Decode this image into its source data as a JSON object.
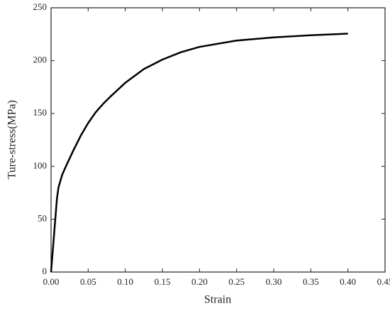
{
  "chart_data": {
    "type": "line",
    "x_label": "Strain",
    "y_label": "Ture-stress(MPa)",
    "x": [
      0,
      0.004,
      0.008,
      0.01,
      0.015,
      0.02,
      0.03,
      0.04,
      0.05,
      0.06,
      0.07,
      0.08,
      0.1,
      0.125,
      0.15,
      0.175,
      0.2,
      0.25,
      0.3,
      0.35,
      0.4
    ],
    "values": [
      0,
      35,
      70,
      80,
      92,
      100,
      115,
      129,
      141,
      151,
      159,
      166,
      179,
      192,
      201,
      208,
      213,
      219,
      222,
      224,
      225.5
    ],
    "color": "#000000",
    "xlim": [
      0,
      0.45
    ],
    "xticks": [
      {
        "value": 0,
        "label": "0.00"
      },
      {
        "value": 0.05,
        "label": "0.05"
      },
      {
        "value": 0.1,
        "label": "0.10"
      },
      {
        "value": 0.15,
        "label": "0.15"
      },
      {
        "value": 0.2,
        "label": "0.20"
      },
      {
        "value": 0.25,
        "label": "0.25"
      },
      {
        "value": 0.3,
        "label": "0.30"
      },
      {
        "value": 0.35,
        "label": "0.35"
      },
      {
        "value": 0.4,
        "label": "0.40"
      },
      {
        "value": 0.45,
        "label": "0.45"
      }
    ],
    "ylim": [
      0,
      250
    ],
    "yticks": [
      0,
      50,
      100,
      150,
      200,
      250
    ]
  }
}
